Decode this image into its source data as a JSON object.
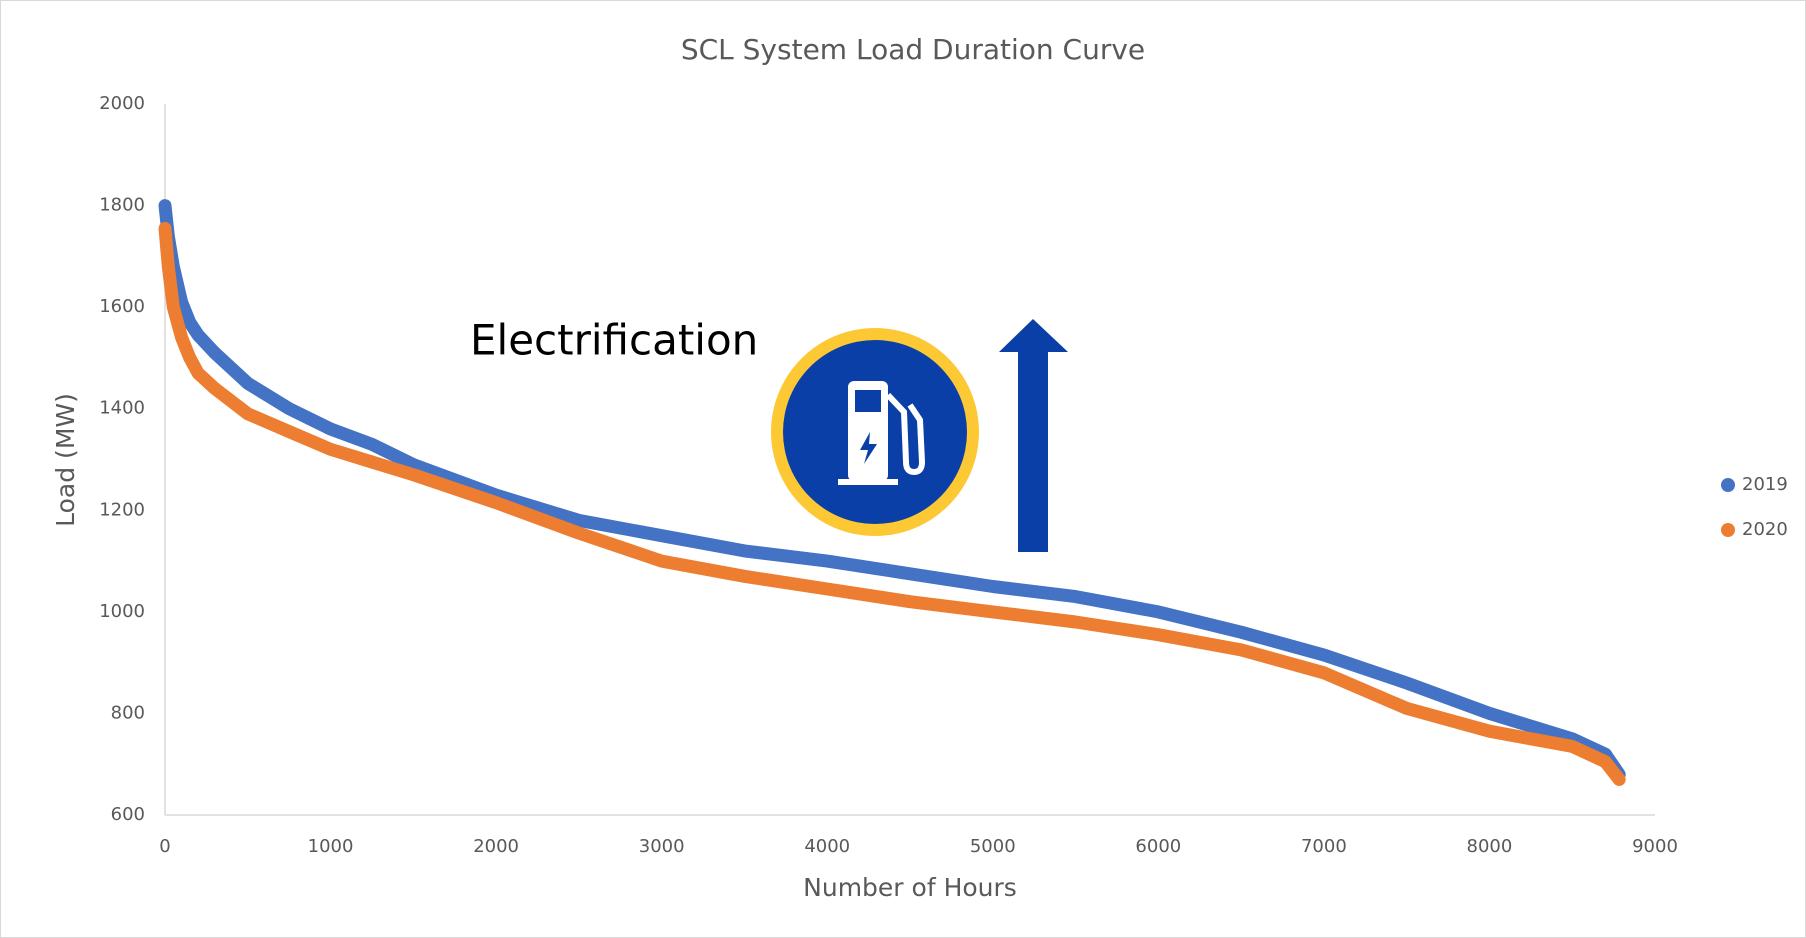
{
  "chart_data": {
    "type": "scatter",
    "title": "SCL System Load Duration Curve",
    "xlabel": "Number of Hours",
    "ylabel": "Load (MW)",
    "annotation": "Electrification",
    "x": [
      0,
      20,
      50,
      100,
      150,
      200,
      300,
      500,
      750,
      1000,
      1250,
      1500,
      2000,
      2500,
      3000,
      3500,
      4000,
      4500,
      5000,
      5500,
      6000,
      6500,
      7000,
      7500,
      8000,
      8250,
      8500,
      8700,
      8784
    ],
    "series": [
      {
        "name": "2019",
        "color": "#4472c4",
        "values": [
          1800,
          1740,
          1680,
          1610,
          1570,
          1545,
          1510,
          1450,
          1400,
          1360,
          1330,
          1290,
          1230,
          1180,
          1150,
          1120,
          1100,
          1075,
          1050,
          1030,
          1000,
          960,
          915,
          860,
          800,
          775,
          750,
          720,
          680
        ]
      },
      {
        "name": "2020",
        "color": "#ed7d31",
        "values": [
          1755,
          1680,
          1600,
          1540,
          1500,
          1470,
          1440,
          1390,
          1355,
          1320,
          1295,
          1270,
          1215,
          1155,
          1100,
          1070,
          1045,
          1020,
          1000,
          980,
          955,
          925,
          880,
          810,
          765,
          750,
          735,
          705,
          670
        ]
      }
    ],
    "xlim": [
      0,
      9000
    ],
    "xticks": [
      0,
      1000,
      2000,
      3000,
      4000,
      5000,
      6000,
      7000,
      8000,
      9000
    ],
    "ylim": [
      600,
      2000
    ],
    "yticks": [
      600,
      800,
      1000,
      1200,
      1400,
      1600,
      1800,
      2000
    ],
    "grid": false,
    "legend": "right"
  }
}
